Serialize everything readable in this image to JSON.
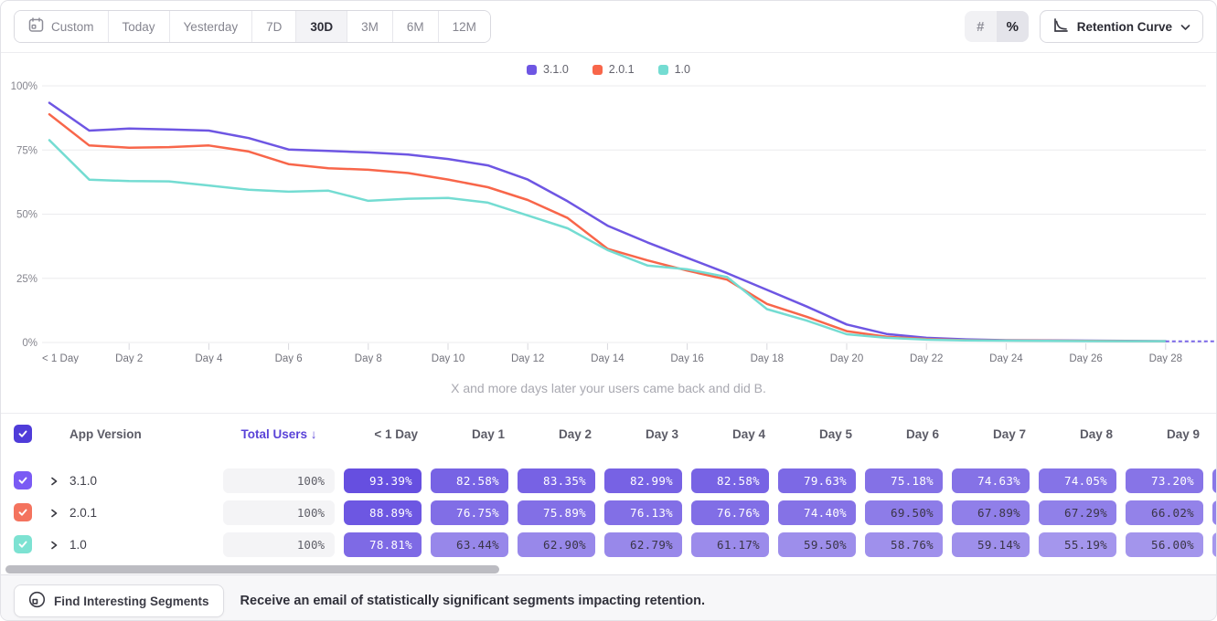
{
  "toolbar": {
    "date_ranges": {
      "items": [
        "Custom",
        "Today",
        "Yesterday",
        "7D",
        "30D",
        "3M",
        "6M",
        "12M"
      ],
      "selected": "30D"
    },
    "value_mode_toggle": {
      "options": [
        "#",
        "%"
      ],
      "selected": "%"
    },
    "view_dropdown": {
      "label": "Retention Curve"
    }
  },
  "chart_data": {
    "type": "line",
    "subtitle": "X and more days later your users came back and did B.",
    "ylabel": "",
    "xlabel": "",
    "ylim": [
      0,
      100
    ],
    "xlim_days": [
      0,
      29.5
    ],
    "grid": true,
    "legend_position": "top-center",
    "y_ticks": [
      {
        "value": 0,
        "label": "0%"
      },
      {
        "value": 25,
        "label": "25%"
      },
      {
        "value": 50,
        "label": "50%"
      },
      {
        "value": 75,
        "label": "75%"
      },
      {
        "value": 100,
        "label": "100%"
      }
    ],
    "x_ticks": [
      {
        "day": 0,
        "label": "< 1 Day"
      },
      {
        "day": 2,
        "label": "Day 2"
      },
      {
        "day": 4,
        "label": "Day 4"
      },
      {
        "day": 6,
        "label": "Day 6"
      },
      {
        "day": 8,
        "label": "Day 8"
      },
      {
        "day": 10,
        "label": "Day 10"
      },
      {
        "day": 12,
        "label": "Day 12"
      },
      {
        "day": 14,
        "label": "Day 14"
      },
      {
        "day": 16,
        "label": "Day 16"
      },
      {
        "day": 18,
        "label": "Day 18"
      },
      {
        "day": 20,
        "label": "Day 20"
      },
      {
        "day": 22,
        "label": "Day 22"
      },
      {
        "day": 24,
        "label": "Day 24"
      },
      {
        "day": 26,
        "label": "Day 26"
      },
      {
        "day": 28,
        "label": "Day 28"
      }
    ],
    "series": [
      {
        "name": "3.1.0",
        "color": "#6e56e3",
        "values": [
          93.39,
          82.58,
          83.35,
          82.99,
          82.58,
          79.63,
          75.18,
          74.63,
          74.05,
          73.2,
          71.5,
          69.0,
          63.5,
          55.0,
          45.5,
          39.0,
          33.0,
          27.0,
          20.5,
          14.0,
          7.0,
          3.3,
          1.8,
          1.2,
          0.9,
          0.8,
          0.7,
          0.6,
          0.5
        ]
      },
      {
        "name": "2.0.1",
        "color": "#f8664a",
        "values": [
          88.89,
          76.75,
          75.89,
          76.13,
          76.76,
          74.4,
          69.5,
          67.89,
          67.29,
          66.02,
          63.5,
          60.5,
          55.5,
          48.5,
          36.5,
          32.0,
          28.0,
          24.5,
          15.0,
          10.0,
          4.4,
          2.2,
          1.3,
          0.9,
          0.8,
          0.7,
          0.6,
          0.55,
          0.5
        ]
      },
      {
        "name": "1.0",
        "color": "#74dcd2",
        "values": [
          78.81,
          63.44,
          62.9,
          62.79,
          61.17,
          59.5,
          58.76,
          59.14,
          55.19,
          56.0,
          56.3,
          54.5,
          49.5,
          44.5,
          36.0,
          30.0,
          28.5,
          25.5,
          13.0,
          8.5,
          3.2,
          1.8,
          1.1,
          0.8,
          0.7,
          0.6,
          0.55,
          0.5,
          0.5
        ]
      }
    ],
    "dashed_tail": {
      "from_day": 28,
      "to_day": 29.5,
      "value": 0.45,
      "color": "#7b68e8"
    }
  },
  "table": {
    "select_all_checked": true,
    "select_all_color": "#4f3cd9",
    "columns": {
      "app_version": "App Version",
      "total_users": "Total Users",
      "sort_arrow": "↓",
      "days": [
        "< 1 Day",
        "Day 1",
        "Day 2",
        "Day 3",
        "Day 4",
        "Day 5",
        "Day 6",
        "Day 7",
        "Day 8",
        "Day 9"
      ]
    },
    "sorted_column": "Total Users",
    "sort_direction": "desc",
    "accent_color": "#5a43d8",
    "pill_base_rgb": [
      91,
      66,
      222
    ],
    "rows": [
      {
        "version": "3.1.0",
        "checkbox_color": "#7a5af4",
        "checked": true,
        "total": "100%",
        "cells": [
          93.39,
          82.58,
          83.35,
          82.99,
          82.58,
          79.63,
          75.18,
          74.63,
          74.05,
          73.2
        ]
      },
      {
        "version": "2.0.1",
        "checkbox_color": "#f4735e",
        "checked": true,
        "total": "100%",
        "cells": [
          88.89,
          76.75,
          75.89,
          76.13,
          76.76,
          74.4,
          69.5,
          67.89,
          67.29,
          66.02
        ]
      },
      {
        "version": "1.0",
        "checkbox_color": "#7de2d2",
        "checked": true,
        "total": "100%",
        "cells": [
          78.81,
          63.44,
          62.9,
          62.79,
          61.17,
          59.5,
          58.76,
          59.14,
          55.19,
          56.0
        ]
      }
    ],
    "clipped_extra_column": true
  },
  "footer": {
    "button_label": "Find Interesting Segments",
    "message": "Receive an email of statistically significant segments impacting retention."
  }
}
